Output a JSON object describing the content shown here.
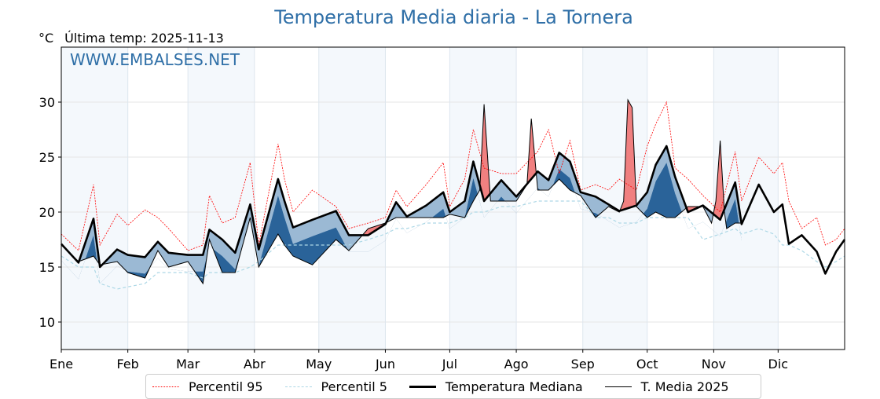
{
  "title": "Temperatura Media diaria - La Tornera",
  "unit": "°C",
  "last_temp": "Última temp: 2025-11-13",
  "watermark": "WWW.EMBALSES.NET",
  "colors": {
    "title": "#2f6fa7",
    "above": "#f08080",
    "below_light": "#9bb9d4",
    "below_dark": "#2a6399",
    "p95": "#ff0000",
    "p5": "#add8e6",
    "band": "#f4f8fc"
  },
  "chart_data": {
    "type": "line",
    "title": "Temperatura Media diaria - La Tornera",
    "ylabel": "°C",
    "xlabel": "",
    "xlim": [
      0,
      365
    ],
    "ylim": [
      7.5,
      35
    ],
    "yticks": [
      10,
      15,
      20,
      25,
      30
    ],
    "month_ticks": [
      {
        "label": "Ene",
        "day": 0
      },
      {
        "label": "Feb",
        "day": 31
      },
      {
        "label": "Mar",
        "day": 59
      },
      {
        "label": "Abr",
        "day": 90
      },
      {
        "label": "May",
        "day": 120
      },
      {
        "label": "Jun",
        "day": 151
      },
      {
        "label": "Jul",
        "day": 181
      },
      {
        "label": "Ago",
        "day": 212
      },
      {
        "label": "Sep",
        "day": 243
      },
      {
        "label": "Oct",
        "day": 273
      },
      {
        "label": "Nov",
        "day": 304
      },
      {
        "label": "Dic",
        "day": 334
      }
    ],
    "grid": true,
    "legend_position": "bottom",
    "legend": [
      "Percentil 95",
      "Percentil 5",
      "Temperatura Mediana",
      "T. Media 2025"
    ],
    "days": [
      0,
      8,
      15,
      18,
      26,
      31,
      39,
      45,
      50,
      59,
      66,
      69,
      75,
      81,
      88,
      92,
      101,
      104,
      108,
      117,
      128,
      134,
      143,
      151,
      156,
      161,
      170,
      178,
      181,
      188,
      192,
      197,
      205,
      212,
      222,
      227,
      232,
      237,
      242,
      249,
      255,
      260,
      268,
      273,
      277,
      282,
      286,
      292,
      299,
      307,
      314,
      317,
      325,
      332,
      336,
      339,
      345,
      352,
      356,
      361,
      365
    ],
    "median": [
      17.1,
      15.4,
      19.4,
      15,
      16.6,
      16.1,
      15.9,
      17.3,
      16.3,
      16.1,
      16.1,
      18.4,
      17.5,
      16.3,
      20.7,
      16.6,
      23,
      21,
      18.6,
      19.3,
      20.1,
      17.9,
      17.9,
      18.9,
      20.9,
      19.6,
      20.6,
      21.8,
      20,
      21,
      24.6,
      21,
      22.9,
      21.4,
      23.7,
      22.9,
      25.4,
      24.6,
      21.8,
      21.4,
      20.7,
      20.1,
      20.6,
      21.8,
      24.3,
      26,
      23.2,
      20,
      20.6,
      19.3,
      22.7,
      18.9,
      22.5,
      20,
      20.7,
      17.1,
      17.9,
      16.4,
      14.4,
      16.4,
      17.5
    ],
    "p95": [
      18,
      16.5,
      22.5,
      17,
      19.8,
      18.8,
      20.2,
      19.5,
      18.5,
      16.5,
      17,
      21.5,
      19,
      19.5,
      24.5,
      17,
      26.2,
      23,
      20,
      22,
      20.5,
      18.5,
      19,
      19.5,
      22,
      20.5,
      22.5,
      24.5,
      20.5,
      23,
      27.5,
      24,
      23.5,
      23.5,
      25.5,
      27.5,
      23.5,
      26.5,
      22,
      22.5,
      22,
      23,
      22,
      26,
      28,
      30,
      24,
      23,
      21.5,
      20,
      25.5,
      21,
      25,
      23.5,
      24.5,
      21,
      18.5,
      19.5,
      17,
      17.5,
      18.5
    ],
    "p5": [
      16,
      15,
      15,
      13.5,
      13,
      13.2,
      13.5,
      14.5,
      14.5,
      14.5,
      14,
      14.5,
      14.5,
      14.5,
      15,
      15.5,
      17,
      17,
      17,
      17,
      17,
      17,
      17.5,
      18,
      18.5,
      18.5,
      19,
      19,
      19,
      19.5,
      20,
      20,
      20.5,
      20.5,
      21,
      21,
      21,
      21,
      21,
      19.5,
      19.5,
      19,
      19,
      19.5,
      19.5,
      19.5,
      19.5,
      19.5,
      17.5,
      18,
      18.5,
      18,
      18.5,
      18,
      17,
      17,
      16.5,
      15.5,
      15,
      15.5,
      16
    ],
    "series_2025_days": [
      0,
      8,
      15,
      18,
      26,
      31,
      39,
      45,
      50,
      59,
      66,
      69,
      75,
      81,
      88,
      92,
      101,
      104,
      108,
      117,
      128,
      134,
      143,
      151,
      156,
      161,
      170,
      178,
      181,
      188,
      192,
      195,
      197,
      200,
      205,
      212,
      217,
      219,
      222,
      227,
      232,
      237,
      242,
      249,
      255,
      260,
      262,
      264,
      266,
      268,
      273,
      277,
      282,
      286,
      292,
      299,
      303,
      305,
      307,
      309,
      310,
      314,
      317
    ],
    "series_2025": [
      17,
      15.5,
      16,
      15.2,
      15.5,
      14.5,
      14,
      16.5,
      15,
      15.5,
      13.5,
      17.5,
      14.5,
      14.5,
      19.5,
      15,
      18,
      17,
      16,
      15.2,
      17.5,
      16.5,
      18.5,
      19,
      19.5,
      19.5,
      19.5,
      19.5,
      19.8,
      19.5,
      21,
      22,
      29.8,
      21,
      21,
      21,
      22.5,
      28.5,
      22,
      22,
      23,
      22,
      21.5,
      19.5,
      20.5,
      20,
      21,
      30.2,
      29.5,
      20.5,
      19.5,
      20,
      19.5,
      19.5,
      20.5,
      20.5,
      19,
      21,
      26.5,
      20,
      18.5,
      19,
      19
    ]
  },
  "legend": {
    "p95": "Percentil 95",
    "p5": "Percentil 5",
    "median": "Temperatura Mediana",
    "y2025": "T. Media 2025"
  }
}
